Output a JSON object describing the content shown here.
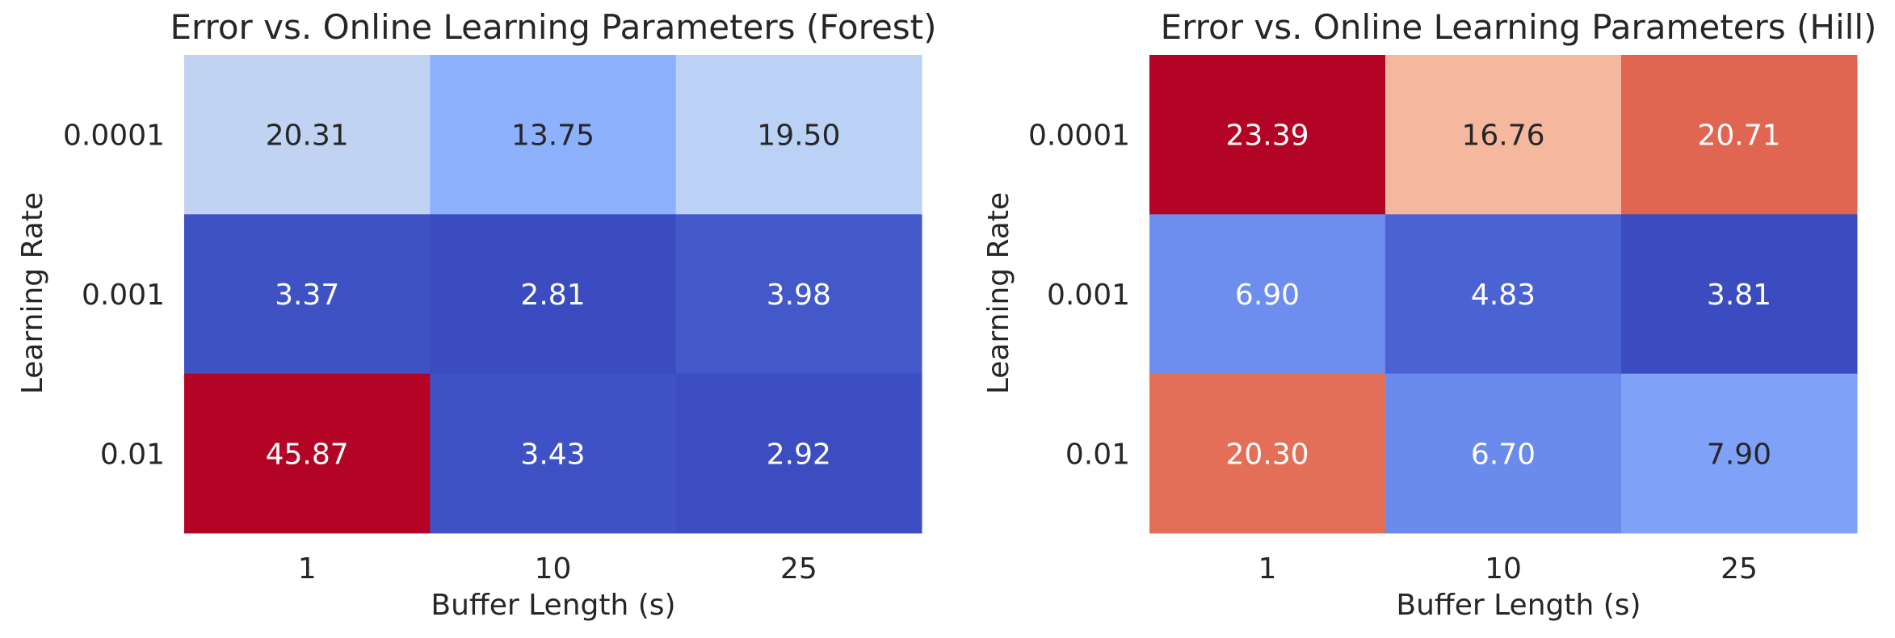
{
  "chart_data": [
    {
      "type": "heatmap",
      "title": "Error vs. Online Learning Parameters (Forest)",
      "xlabel": "Buffer Length (s)",
      "ylabel": "Learning Rate",
      "x_categories": [
        "1",
        "10",
        "25"
      ],
      "y_categories": [
        "0.0001",
        "0.001",
        "0.01"
      ],
      "values": [
        [
          20.31,
          13.75,
          19.5
        ],
        [
          3.37,
          2.81,
          3.98
        ],
        [
          45.87,
          3.43,
          2.92
        ]
      ],
      "value_labels": [
        [
          "20.31",
          "13.75",
          "19.50"
        ],
        [
          "3.37",
          "2.81",
          "3.98"
        ],
        [
          "45.87",
          "3.43",
          "2.92"
        ]
      ],
      "colormap": "coolwarm",
      "colorbar": false
    },
    {
      "type": "heatmap",
      "title": "Error vs. Online Learning Parameters (Hill)",
      "xlabel": "Buffer Length (s)",
      "ylabel": "Learning Rate",
      "x_categories": [
        "1",
        "10",
        "25"
      ],
      "y_categories": [
        "0.0001",
        "0.001",
        "0.01"
      ],
      "values": [
        [
          23.39,
          16.76,
          20.71
        ],
        [
          6.9,
          4.83,
          3.81
        ],
        [
          20.3,
          6.7,
          7.9
        ]
      ],
      "value_labels": [
        [
          "23.39",
          "16.76",
          "20.71"
        ],
        [
          "6.90",
          "4.83",
          "3.81"
        ],
        [
          "20.30",
          "6.70",
          "7.90"
        ]
      ],
      "colormap": "coolwarm",
      "colorbar": false
    }
  ],
  "colors": {
    "background": "#ffffff",
    "text": "#262626",
    "label_on_dark": "#ffffff",
    "label_on_light": "#262626"
  }
}
